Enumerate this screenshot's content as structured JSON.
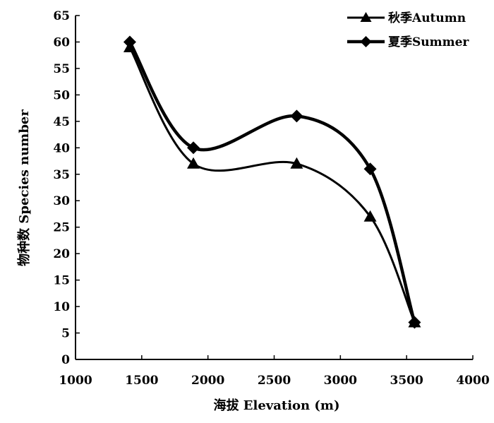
{
  "chart_data": {
    "type": "line",
    "xlabel": "海拔 Elevation (m)",
    "ylabel": "物种数 Species number",
    "xlim": [
      1000,
      4000
    ],
    "ylim": [
      0,
      65
    ],
    "xticks": [
      1000,
      1500,
      2000,
      2500,
      3000,
      3500,
      4000
    ],
    "yticks": [
      0,
      5,
      10,
      15,
      20,
      25,
      30,
      35,
      40,
      45,
      50,
      55,
      60,
      65
    ],
    "grid": false,
    "legend_position": "top-right",
    "series": [
      {
        "name": "秋季Autumn",
        "marker": "triangle",
        "color": "#000000",
        "x": [
          1410,
          1890,
          2670,
          3225,
          3560
        ],
        "y": [
          59,
          37,
          37,
          27,
          7
        ]
      },
      {
        "name": "夏季Summer",
        "marker": "diamond",
        "color": "#000000",
        "x": [
          1410,
          1890,
          2670,
          3225,
          3560
        ],
        "y": [
          60,
          40,
          46,
          36,
          7
        ]
      }
    ]
  }
}
